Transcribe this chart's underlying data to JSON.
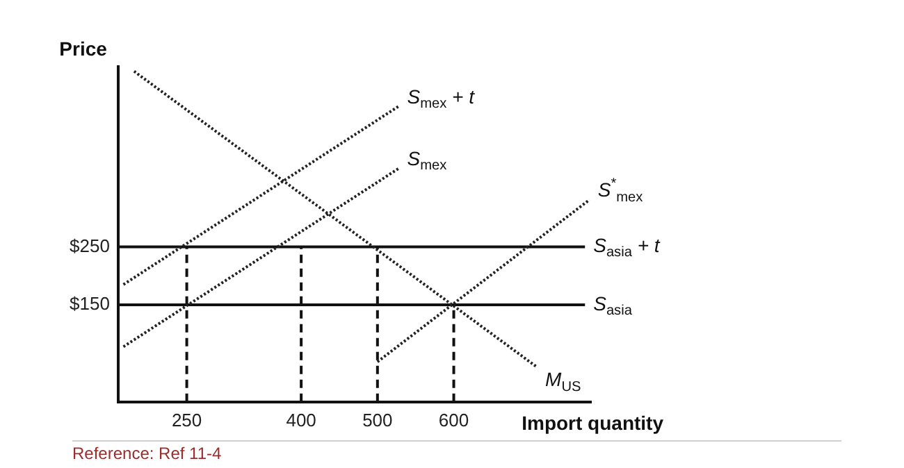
{
  "chart_data": {
    "type": "line",
    "ylabel": "Price",
    "xlabel": "Import quantity",
    "annotations": [
      "Reference: Ref 11-4"
    ],
    "xlim": [
      160,
      780
    ],
    "ylim": [
      -17,
      560
    ],
    "xticks": [
      250,
      400,
      500,
      600
    ],
    "yticks": [
      {
        "value": 150,
        "label": "$150"
      },
      {
        "value": 250,
        "label": "$250"
      }
    ],
    "tick_labels": "xy",
    "marker": "none",
    "series": [
      {
        "name": "M$_{US}$",
        "color": "#222222",
        "line_style": "dotted",
        "x": [
          181,
          709
        ],
        "values": [
          552,
          43
        ]
      },
      {
        "name": "S$_{mex}$ + t",
        "color": "#222222",
        "line_style": "dotted",
        "x": [
          167,
          528
        ],
        "values": [
          185,
          492
        ]
      },
      {
        "name": "S$_{mex}$",
        "color": "#222222",
        "line_style": "dotted",
        "x": [
          167,
          528
        ],
        "values": [
          78,
          385
        ]
      },
      {
        "name": "S$^{*}$$_{mex}$",
        "color": "#222222",
        "line_style": "dotted",
        "x": [
          500,
          778
        ],
        "values": [
          52,
          331
        ]
      },
      {
        "name": "S$_{asia}$ + t",
        "color": "#111111",
        "line_style": "solid",
        "x": [
          160,
          772
        ],
        "values": [
          250,
          250
        ]
      },
      {
        "name": "S$_{asia}$",
        "color": "#111111",
        "line_style": "solid",
        "x": [
          160,
          772
        ],
        "values": [
          150,
          150
        ]
      },
      {
        "color": "#111111",
        "line_style": "dashed",
        "x": [
          250,
          250
        ],
        "values": [
          -17,
          250
        ]
      },
      {
        "color": "#111111",
        "line_style": "dashed",
        "x": [
          400,
          400
        ],
        "values": [
          -17,
          250
        ]
      },
      {
        "color": "#111111",
        "line_style": "dashed",
        "x": [
          500,
          500
        ],
        "values": [
          -17,
          250
        ]
      },
      {
        "color": "#111111",
        "line_style": "dashed",
        "x": [
          600,
          600
        ],
        "values": [
          -17,
          150
        ]
      }
    ]
  }
}
